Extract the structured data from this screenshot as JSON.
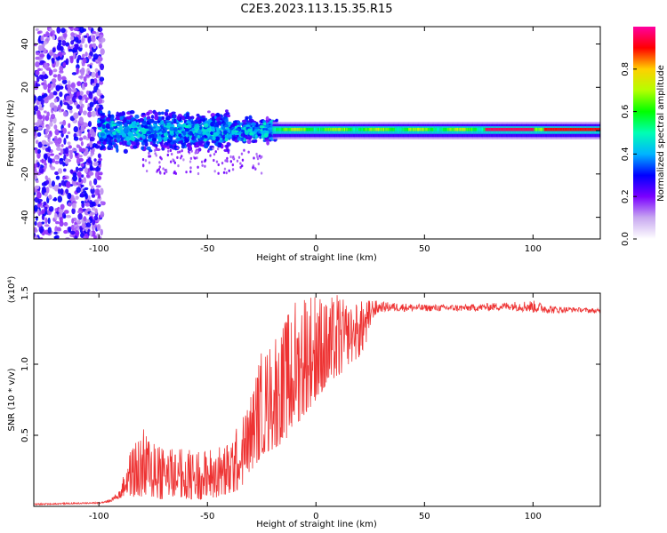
{
  "figure_title": "C2E3.2023.113.15.35.R15",
  "chart_data": [
    {
      "type": "heatmap",
      "title": "",
      "xlabel": "Height of straight line (km)",
      "ylabel": "Frequency (Hz)",
      "xlim": [
        -130,
        131
      ],
      "ylim": [
        -50,
        48
      ],
      "x_ticks": [
        -100,
        -50,
        0,
        50,
        100
      ],
      "y_ticks": [
        -40,
        -20,
        0,
        20,
        40
      ],
      "colorbar": {
        "label": "Normalized spectral amplitude",
        "range": [
          0,
          1
        ],
        "ticks": [
          "0.0",
          "0.2",
          "0.4",
          "0.6",
          "0.8"
        ],
        "colors": [
          "#ffffff",
          "#c8a8f0",
          "#7a00ff",
          "#0000ff",
          "#00b4ff",
          "#00ffb4",
          "#00ff00",
          "#b4ff00",
          "#ffd000",
          "#ff0000",
          "#ff00a0"
        ]
      },
      "features": [
        {
          "x_range": [
            -130,
            -100
          ],
          "freq_range": [
            -50,
            48
          ],
          "amplitude": "scattered 0.1-0.3"
        },
        {
          "x_range": [
            -100,
            -20
          ],
          "freq_range": [
            -10,
            12
          ],
          "amplitude": "0.2-0.5"
        },
        {
          "x_range": [
            -20,
            131
          ],
          "freq_center": 0,
          "freq_halfwidth": 3,
          "amplitude": "0.4-0.95"
        },
        {
          "x_range": [
            78,
            100
          ],
          "freq_center": 1,
          "amplitude": "0.95"
        },
        {
          "x_range": [
            105,
            131
          ],
          "freq_center": 1,
          "amplitude": "0.9"
        }
      ]
    },
    {
      "type": "line",
      "title": "",
      "xlabel": "Height of straight line (km)",
      "ylabel": "SNR (10 * v/v)",
      "y_multiplier": "(x10⁴)",
      "xlim": [
        -130,
        131
      ],
      "ylim": [
        0,
        1.5
      ],
      "x_ticks": [
        -100,
        -50,
        0,
        50,
        100
      ],
      "y_ticks": [
        "0.5",
        "1.0",
        "1.5"
      ],
      "series_color": "#ee3333",
      "envelope": {
        "x": [
          -130,
          -100,
          -95,
          -90,
          -87,
          -80,
          -70,
          -60,
          -50,
          -40,
          -35,
          -30,
          -25,
          -20,
          -15,
          -10,
          -5,
          0,
          5,
          10,
          15,
          20,
          25,
          30,
          50,
          70,
          90,
          100,
          110,
          120,
          131
        ],
        "low": [
          0.01,
          0.02,
          0.03,
          0.06,
          0.08,
          0.05,
          0.05,
          0.05,
          0.05,
          0.08,
          0.12,
          0.25,
          0.35,
          0.4,
          0.45,
          0.55,
          0.65,
          0.75,
          0.85,
          0.9,
          1.0,
          1.05,
          1.2,
          1.32,
          1.34,
          1.34,
          1.34,
          1.3,
          1.32,
          1.35,
          1.33
        ],
        "high": [
          0.02,
          0.03,
          0.05,
          0.12,
          0.35,
          0.55,
          0.45,
          0.4,
          0.4,
          0.45,
          0.6,
          0.8,
          1.1,
          1.2,
          1.3,
          1.45,
          1.5,
          1.5,
          1.45,
          1.5,
          1.42,
          1.45,
          1.46,
          1.44,
          1.42,
          1.42,
          1.44,
          1.45,
          1.41,
          1.4,
          1.39
        ]
      }
    }
  ]
}
